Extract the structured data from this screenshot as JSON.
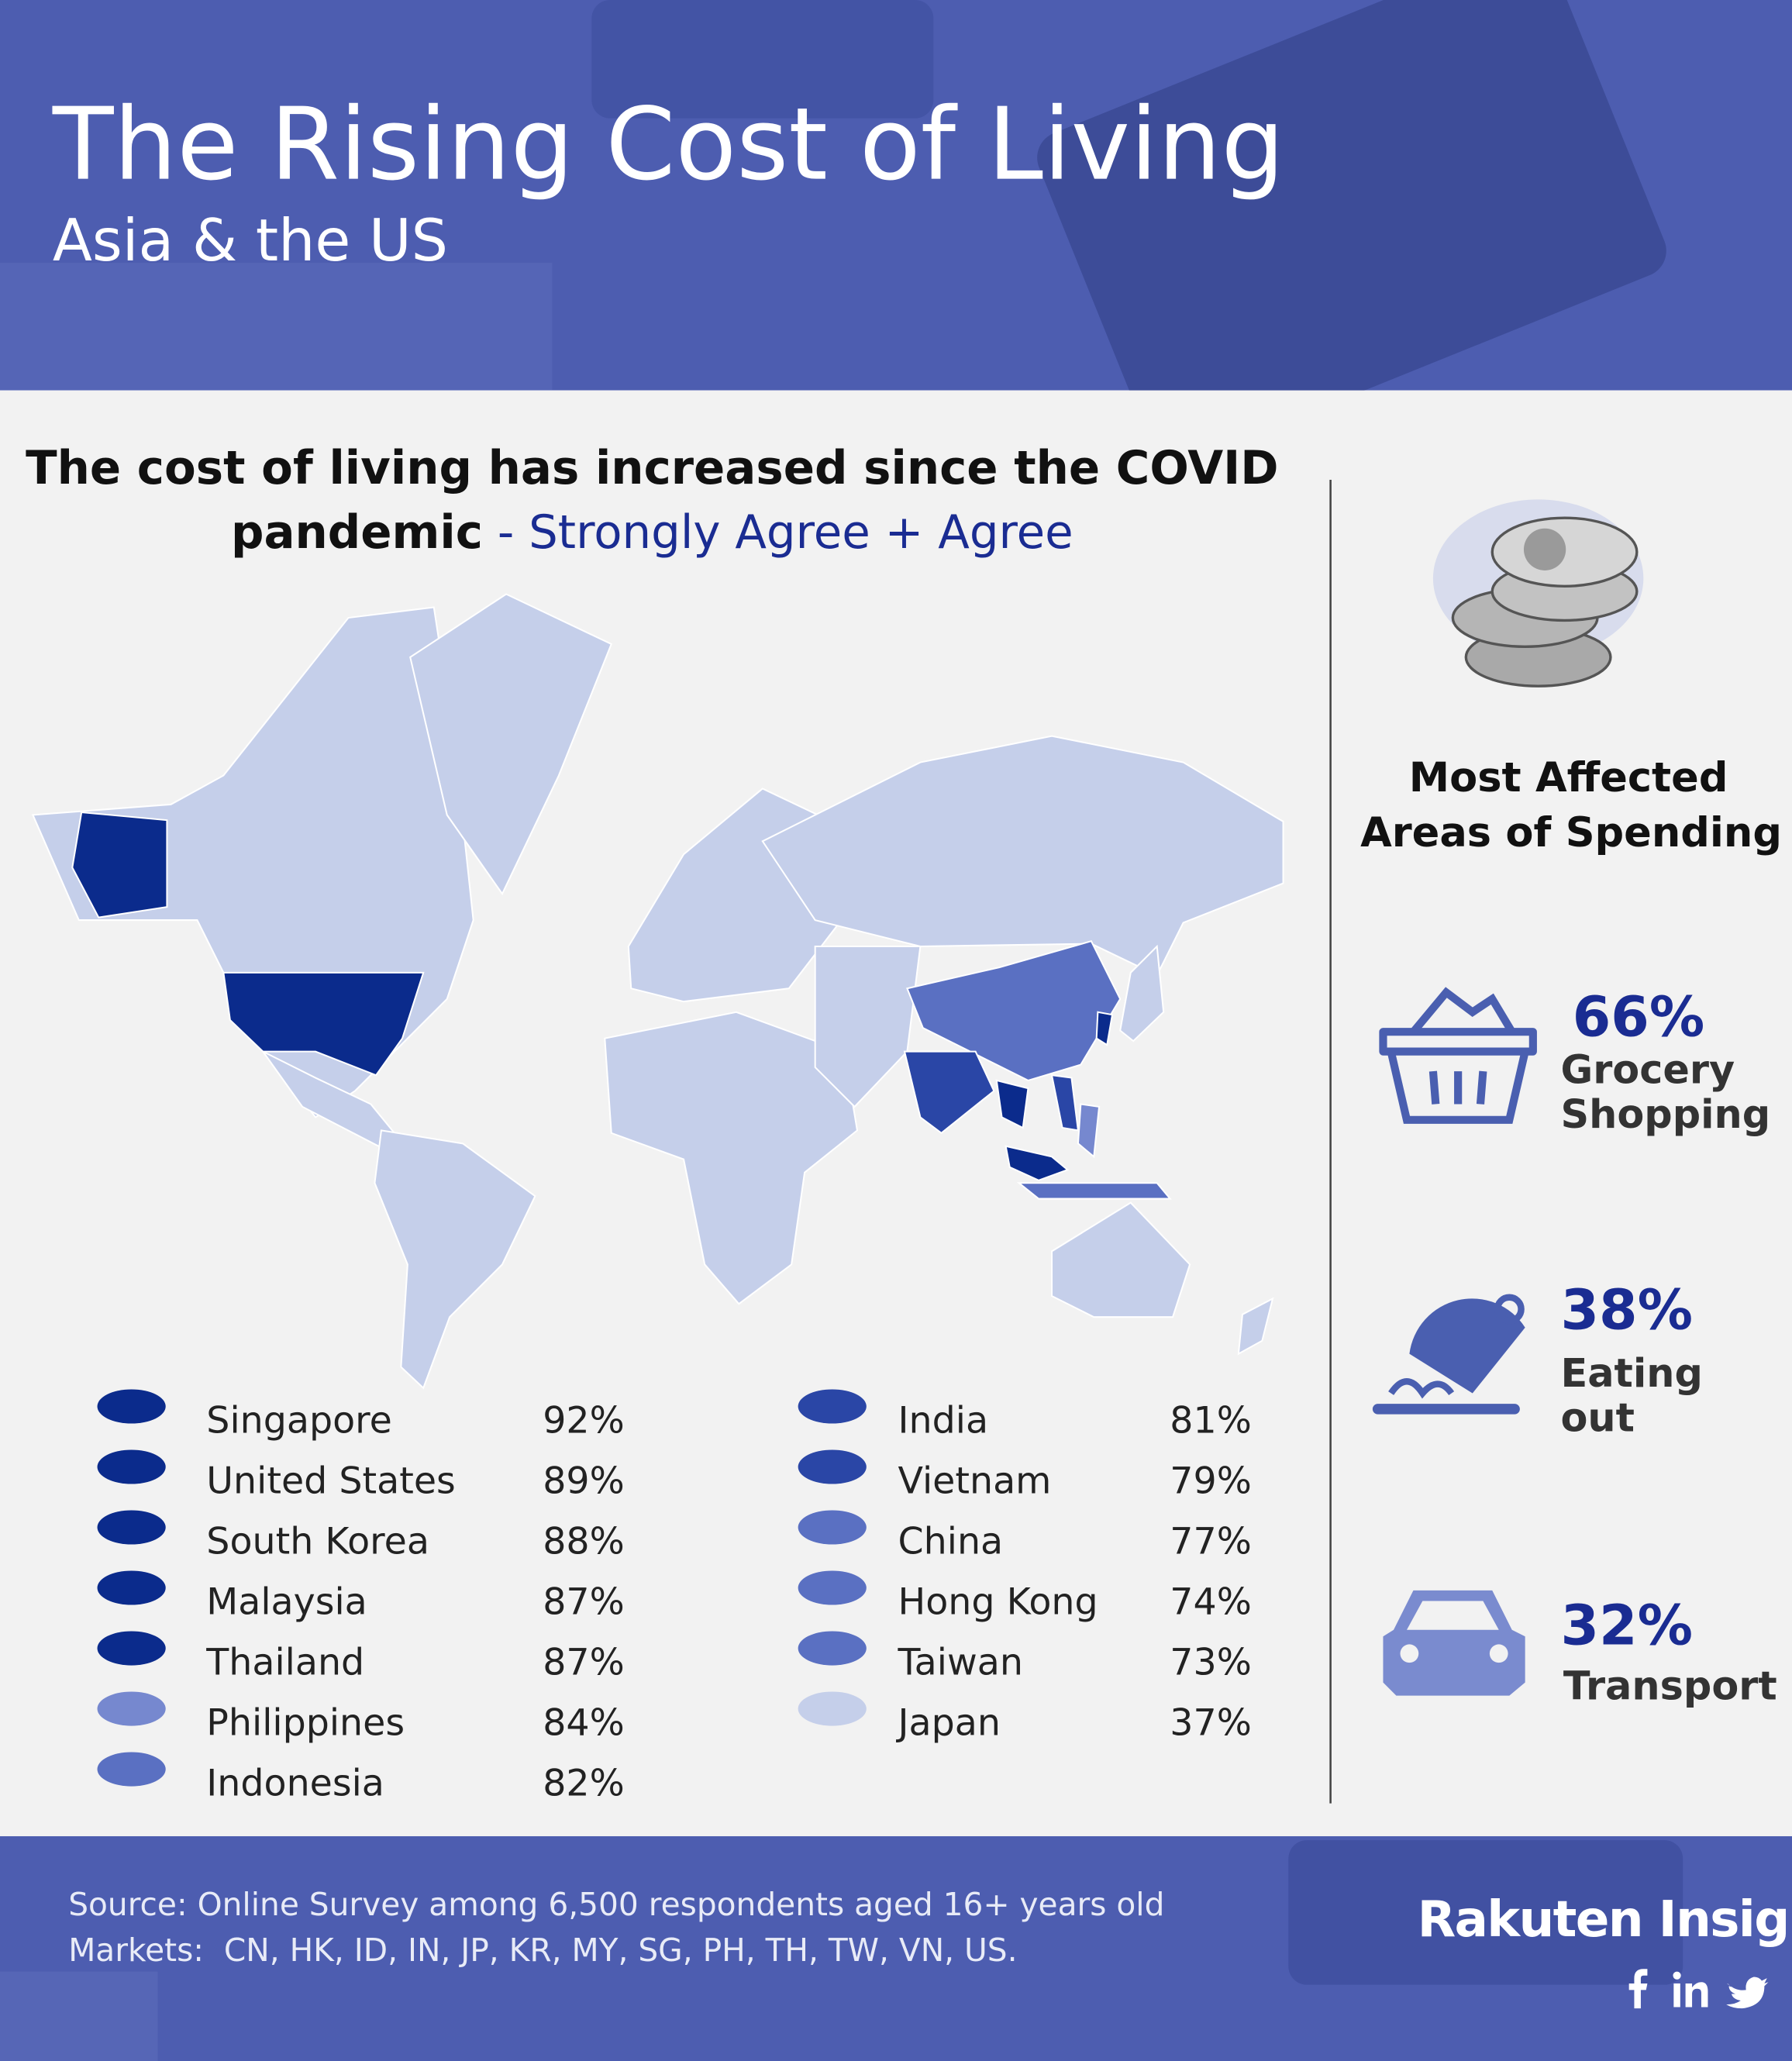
{
  "header": {
    "title": "The Rising Cost of Living",
    "subtitle": "Asia & the US"
  },
  "headline": {
    "line1": "The cost of living has increased since the COVID",
    "line2_bold": "pandemic",
    "line2_accent": " - Strongly Agree + Agree"
  },
  "legend": {
    "left": [
      {
        "country": "Singapore",
        "value": "92%",
        "color": "#0b2b8c"
      },
      {
        "country": "United States",
        "value": "89%",
        "color": "#0b2b8c"
      },
      {
        "country": "South Korea",
        "value": "88%",
        "color": "#0b2b8c"
      },
      {
        "country": "Malaysia",
        "value": "87%",
        "color": "#0b2b8c"
      },
      {
        "country": "Thailand",
        "value": "87%",
        "color": "#0b2b8c"
      },
      {
        "country": "Philippines",
        "value": "84%",
        "color": "#7688cf"
      },
      {
        "country": "Indonesia",
        "value": "82%",
        "color": "#5a70c2"
      }
    ],
    "right": [
      {
        "country": "India",
        "value": "81%",
        "color": "#2a46a6"
      },
      {
        "country": "Vietnam",
        "value": "79%",
        "color": "#2a46a6"
      },
      {
        "country": "China",
        "value": "77%",
        "color": "#5a70c2"
      },
      {
        "country": "Hong Kong",
        "value": "74%",
        "color": "#5a70c2"
      },
      {
        "country": "Taiwan",
        "value": "73%",
        "color": "#5a70c2"
      },
      {
        "country": "Japan",
        "value": "37%",
        "color": "#c5cfea"
      }
    ]
  },
  "spending": {
    "title": [
      "Most Affected",
      "Areas of Spending"
    ],
    "items": [
      {
        "value": "66%",
        "label": [
          "Grocery",
          "Shopping"
        ]
      },
      {
        "value": "38%",
        "label": [
          "Eating",
          "out"
        ]
      },
      {
        "value": "32%",
        "label": [
          "Transport"
        ]
      }
    ]
  },
  "footer": {
    "source": "Source: Online Survey among 6,500 respondents aged 16+ years old",
    "markets": "Markets:  CN, HK, ID, IN, JP, KR, MY, SG, PH, TH, TW, VN, US.",
    "brand": "Rakuten Insight"
  }
}
